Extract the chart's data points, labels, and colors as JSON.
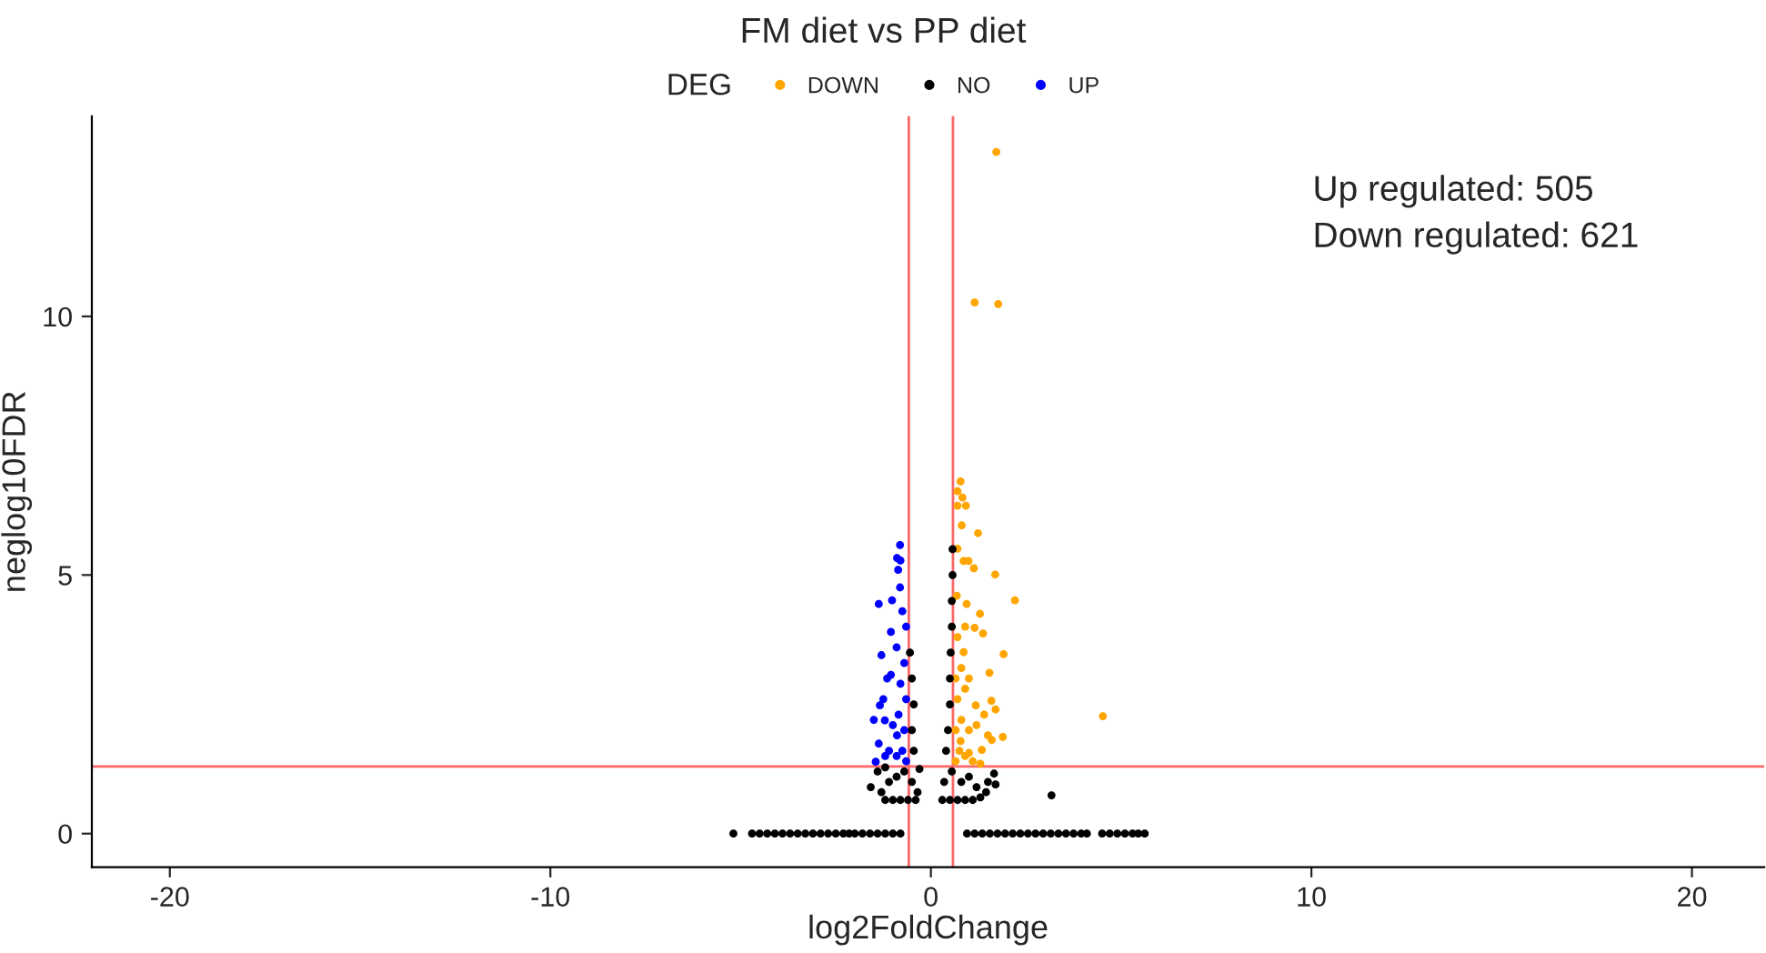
{
  "chart_data": {
    "type": "scatter",
    "title": "FM diet vs PP diet",
    "xlabel": "log2FoldChange",
    "ylabel": "neglog10FDR",
    "legend_title": "DEG",
    "legend": "top",
    "grid": false,
    "marker": "circle",
    "xlim": [
      -22.05,
      21.9
    ],
    "ylim": [
      -0.65,
      13.87
    ],
    "xticks": [
      -20,
      -10,
      0,
      10,
      20
    ],
    "yticks": [
      0,
      5,
      10
    ],
    "annotations": [
      "Up regulated: 505",
      "Down regulated: 621"
    ],
    "ref_lines": [
      {
        "axis": "x",
        "value": -0.58,
        "color": "#ff6666"
      },
      {
        "axis": "x",
        "value": 0.58,
        "color": "#ff6666"
      },
      {
        "axis": "y",
        "value": 1.3,
        "color": "#ff6666"
      }
    ],
    "series": [
      {
        "name": "DOWN",
        "color": "#ffa500",
        "x": [
          1.72,
          1.15,
          1.77,
          0.81,
          1.24,
          0.7,
          0.86,
          0.99,
          1.13,
          1.69,
          2.21,
          0.94,
          1.29,
          1.15,
          1.37,
          1.91,
          0.86,
          1.54,
          4.52,
          1.59,
          1.18,
          1.89,
          1.6,
          1.34,
          1.0,
          0.78,
          0.78,
          0.7,
          0.83,
          0.7,
          0.92,
          0.65,
          0.75,
          0.9,
          1.1,
          1.3,
          0.65,
          0.8,
          1.0,
          1.2,
          0.7,
          0.9,
          0.65,
          0.8,
          1.0,
          0.7,
          0.9,
          0.68,
          1.4,
          1.7,
          1.5
        ],
        "values": [
          13.18,
          10.27,
          10.24,
          5.96,
          5.81,
          5.51,
          5.27,
          5.27,
          5.13,
          5.01,
          4.51,
          4.44,
          4.25,
          3.98,
          3.87,
          3.47,
          3.51,
          3.11,
          2.27,
          2.57,
          2.48,
          1.87,
          1.81,
          1.62,
          1.56,
          1.79,
          6.81,
          6.62,
          6.5,
          6.34,
          6.34,
          1.4,
          1.6,
          1.5,
          1.4,
          1.35,
          2.0,
          2.2,
          2.0,
          2.1,
          2.6,
          2.8,
          3.0,
          3.2,
          3.0,
          3.8,
          4.0,
          4.6,
          2.3,
          2.4,
          1.9
        ]
      },
      {
        "name": "NO",
        "color": "#000000",
        "x": [
          -5.19,
          -4.7,
          -4.5,
          -4.3,
          -4.1,
          -3.9,
          -3.7,
          -3.5,
          -3.3,
          -3.1,
          -2.9,
          -2.7,
          -2.5,
          -2.3,
          -2.15,
          -2.0,
          -1.8,
          -1.6,
          -1.4,
          -1.2,
          -1.0,
          -0.8,
          0.95,
          1.15,
          1.35,
          1.55,
          1.75,
          1.95,
          2.15,
          2.35,
          2.55,
          2.75,
          2.95,
          3.15,
          3.35,
          3.55,
          3.75,
          3.95,
          4.1,
          4.5,
          4.7,
          4.9,
          5.1,
          5.3,
          5.45,
          5.62,
          -1.3,
          -1.2,
          -1.0,
          -0.8,
          -0.6,
          -0.4,
          -1.1,
          -0.9,
          -0.7,
          -0.5,
          -0.35,
          -0.3,
          -1.58,
          -1.4,
          -1.2,
          -0.45,
          -0.5,
          -0.45,
          -0.5,
          -0.55,
          0.3,
          0.5,
          0.7,
          0.9,
          1.1,
          1.3,
          0.35,
          0.55,
          0.8,
          1.0,
          1.2,
          1.66,
          1.5,
          1.45,
          1.7,
          3.17,
          0.4,
          0.45,
          0.5,
          0.5,
          0.52,
          0.55,
          0.55,
          0.57,
          0.57
        ],
        "values": [
          0,
          0,
          0,
          0,
          0,
          0,
          0,
          0,
          0,
          0,
          0,
          0,
          0,
          0,
          0,
          0,
          0,
          0,
          0,
          0,
          0,
          0,
          0,
          0,
          0,
          0,
          0,
          0,
          0,
          0,
          0,
          0,
          0,
          0,
          0,
          0,
          0,
          0,
          0,
          0,
          0,
          0,
          0,
          0,
          0,
          0,
          0.8,
          0.65,
          0.65,
          0.65,
          0.65,
          0.65,
          1.0,
          1.1,
          1.2,
          1.0,
          0.8,
          1.25,
          0.9,
          1.2,
          1.28,
          1.6,
          2.0,
          2.5,
          3.0,
          3.5,
          0.65,
          0.65,
          0.65,
          0.65,
          0.65,
          0.7,
          1.0,
          1.2,
          1.0,
          1.1,
          0.9,
          1.16,
          1.0,
          0.8,
          0.95,
          0.74,
          1.6,
          2.0,
          2.5,
          3.0,
          3.5,
          4.0,
          4.5,
          5.0,
          5.5
        ]
      },
      {
        "name": "UP",
        "color": "#0000ff",
        "x": [
          -0.8,
          -0.81,
          -0.89,
          -0.86,
          -0.81,
          -1.37,
          -1.02,
          -1.05,
          -1.3,
          -1.05,
          -1.34,
          -1.21,
          -1.37,
          -1.45,
          -0.89,
          -0.65,
          -0.75,
          -0.9,
          -1.1,
          -0.7,
          -0.85,
          -1.0,
          -1.25,
          -0.65,
          -0.8,
          -0.7,
          -0.9,
          -0.65,
          -0.75,
          -1.15,
          -1.5,
          -1.2
        ],
        "values": [
          5.28,
          5.58,
          5.33,
          5.1,
          4.76,
          4.44,
          4.51,
          3.9,
          3.45,
          3.07,
          2.48,
          2.19,
          1.74,
          1.39,
          1.9,
          1.4,
          1.6,
          1.5,
          1.6,
          2.0,
          2.3,
          2.1,
          2.6,
          2.6,
          2.9,
          3.3,
          3.6,
          4.0,
          4.3,
          3.0,
          2.2,
          1.5
        ]
      }
    ]
  }
}
